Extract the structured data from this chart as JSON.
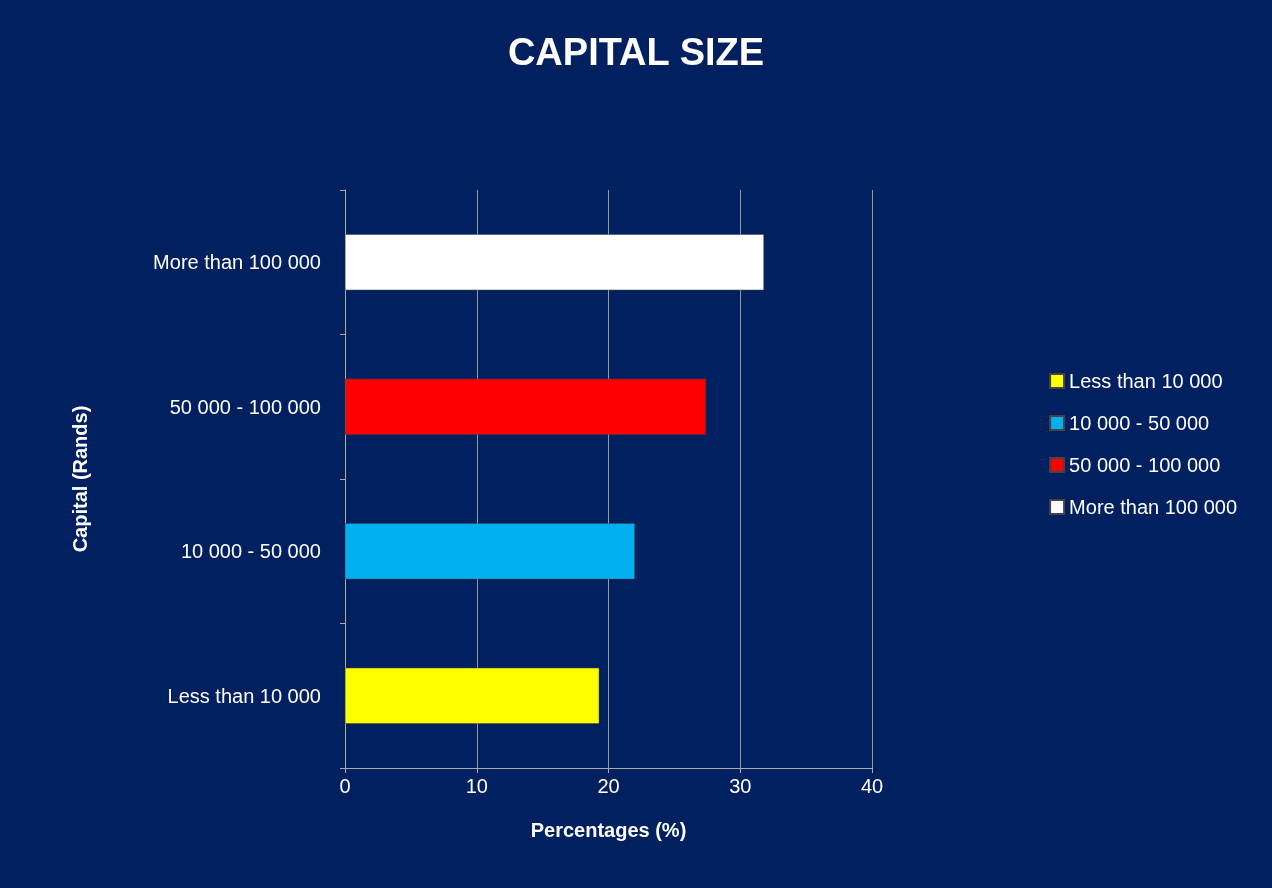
{
  "chart_data": {
    "type": "bar",
    "orientation": "horizontal",
    "title": "CAPITAL SIZE",
    "xlabel": "Percentages (%)",
    "ylabel": "Capital (Rands)",
    "categories": [
      "More than 100 000",
      "50 000 - 100 000",
      "10 000 - 50 000",
      "Less than 10 000"
    ],
    "series": [
      {
        "name": "Less than 10 000",
        "color": "#ffff00",
        "values": [
          null,
          null,
          null,
          19.3
        ]
      },
      {
        "name": "10 000 - 50 000",
        "color": "#00b0f0",
        "values": [
          null,
          null,
          22.0,
          null
        ]
      },
      {
        "name": "50 000 - 100 000",
        "color": "#ff0000",
        "values": [
          null,
          27.4,
          null,
          null
        ]
      },
      {
        "name": "More than 100 000",
        "color": "#ffffff",
        "values": [
          31.8,
          null,
          null,
          null
        ]
      }
    ],
    "xlim": [
      0,
      40
    ],
    "xticks": [
      0,
      10,
      20,
      30,
      40
    ],
    "grid": "x",
    "legend": "right"
  }
}
